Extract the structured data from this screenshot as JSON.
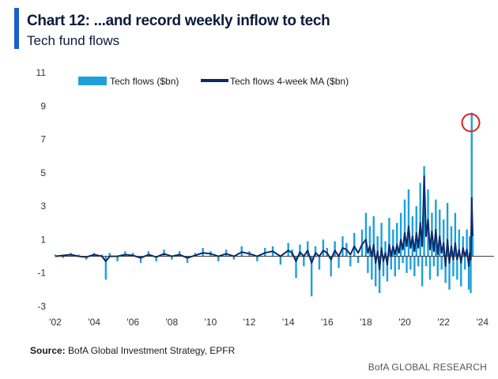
{
  "header": {
    "title": "Chart 12: ...and record weekly inflow to tech",
    "subtitle": "Tech fund flows"
  },
  "footer": {
    "source_label": "Source:",
    "source_text": "BofA Global Investment Strategy, EPFR",
    "brand": "BofA GLOBAL RESEARCH"
  },
  "colors": {
    "accent": "#1a5fd0",
    "weekly": "#1ea0dc",
    "ma": "#0d2a6b",
    "highlight": "#e01f26"
  },
  "chart_data": {
    "type": "line",
    "title": "Tech fund flows",
    "legend_position": "top",
    "grid": false,
    "ylim": [
      -3,
      11
    ],
    "yticks": [
      -3,
      -1,
      1,
      3,
      5,
      7,
      9,
      11
    ],
    "xlim": [
      2002,
      2024.6
    ],
    "xticks": [
      {
        "value": 2002,
        "label": "'02"
      },
      {
        "value": 2004,
        "label": "'04"
      },
      {
        "value": 2006,
        "label": "'06"
      },
      {
        "value": 2008,
        "label": "'08"
      },
      {
        "value": 2010,
        "label": "'10"
      },
      {
        "value": 2012,
        "label": "'12"
      },
      {
        "value": 2014,
        "label": "'14"
      },
      {
        "value": 2016,
        "label": "'16"
      },
      {
        "value": 2018,
        "label": "'18"
      },
      {
        "value": 2020,
        "label": "'20"
      },
      {
        "value": 2022,
        "label": "'22"
      },
      {
        "value": 2024,
        "label": "'24"
      }
    ],
    "series": [
      {
        "name": "Tech flows ($bn)",
        "style": "weekly-bars",
        "x": [
          2002.0,
          2002.4,
          2002.8,
          2003.2,
          2003.6,
          2004.0,
          2004.4,
          2004.6,
          2004.8,
          2005.2,
          2005.6,
          2006.0,
          2006.4,
          2006.8,
          2007.2,
          2007.6,
          2008.0,
          2008.4,
          2008.8,
          2009.2,
          2009.6,
          2010.0,
          2010.4,
          2010.8,
          2011.2,
          2011.6,
          2012.0,
          2012.4,
          2012.8,
          2013.2,
          2013.6,
          2014.0,
          2014.2,
          2014.4,
          2014.6,
          2014.8,
          2015.0,
          2015.2,
          2015.4,
          2015.6,
          2015.8,
          2016.0,
          2016.2,
          2016.4,
          2016.6,
          2016.8,
          2017.0,
          2017.2,
          2017.4,
          2017.6,
          2017.8,
          2018.0,
          2018.1,
          2018.2,
          2018.3,
          2018.4,
          2018.5,
          2018.6,
          2018.7,
          2018.8,
          2018.9,
          2019.0,
          2019.1,
          2019.2,
          2019.3,
          2019.4,
          2019.5,
          2019.6,
          2019.7,
          2019.8,
          2019.9,
          2020.0,
          2020.1,
          2020.2,
          2020.3,
          2020.4,
          2020.5,
          2020.6,
          2020.7,
          2020.8,
          2020.9,
          2021.0,
          2021.1,
          2021.2,
          2021.3,
          2021.4,
          2021.5,
          2021.6,
          2021.7,
          2021.8,
          2021.9,
          2022.0,
          2022.1,
          2022.2,
          2022.3,
          2022.4,
          2022.5,
          2022.6,
          2022.7,
          2022.8,
          2022.9,
          2023.0,
          2023.1,
          2023.2,
          2023.3,
          2023.35,
          2023.4,
          2023.45,
          2023.5
        ],
        "values": [
          0.1,
          -0.1,
          0.2,
          0.1,
          -0.2,
          0.2,
          0.1,
          -1.4,
          0.2,
          -0.3,
          0.3,
          0.2,
          -0.4,
          0.3,
          -0.3,
          0.4,
          -0.2,
          0.3,
          -0.4,
          0.2,
          0.5,
          0.3,
          -0.3,
          0.4,
          -0.2,
          0.6,
          0.3,
          -0.3,
          0.5,
          0.6,
          -0.5,
          0.8,
          0.4,
          -1.3,
          0.7,
          -0.6,
          0.9,
          -2.4,
          0.6,
          -0.8,
          1.0,
          0.5,
          -1.2,
          0.9,
          -0.7,
          1.2,
          0.8,
          -0.6,
          1.4,
          -0.4,
          1.6,
          2.6,
          -1.0,
          1.8,
          -1.4,
          2.4,
          -1.8,
          1.2,
          -2.2,
          2.0,
          -1.2,
          0.9,
          -1.5,
          2.3,
          -0.8,
          1.6,
          -1.2,
          2.0,
          -0.8,
          2.6,
          -0.4,
          3.4,
          -1.0,
          4.0,
          -0.8,
          2.4,
          -1.2,
          3.0,
          -0.6,
          4.4,
          -1.8,
          5.4,
          -0.6,
          4.0,
          -1.4,
          2.6,
          -0.6,
          3.4,
          -1.2,
          2.8,
          -0.8,
          2.2,
          -1.6,
          3.2,
          -2.0,
          1.8,
          -1.2,
          2.6,
          -1.4,
          1.6,
          -1.8,
          1.2,
          -0.8,
          1.6,
          -2.0,
          1.2,
          -2.2,
          8.6,
          1.2
        ]
      },
      {
        "name": "Tech flows 4-week MA ($bn)",
        "style": "line",
        "x": [
          2002.0,
          2002.4,
          2002.8,
          2003.2,
          2003.6,
          2004.0,
          2004.4,
          2004.6,
          2004.8,
          2005.2,
          2005.6,
          2006.0,
          2006.4,
          2006.8,
          2007.2,
          2007.6,
          2008.0,
          2008.4,
          2008.8,
          2009.2,
          2009.6,
          2010.0,
          2010.4,
          2010.8,
          2011.2,
          2011.6,
          2012.0,
          2012.4,
          2012.8,
          2013.2,
          2013.6,
          2014.0,
          2014.2,
          2014.4,
          2014.6,
          2014.8,
          2015.0,
          2015.2,
          2015.4,
          2015.6,
          2015.8,
          2016.0,
          2016.2,
          2016.4,
          2016.6,
          2016.8,
          2017.0,
          2017.2,
          2017.4,
          2017.6,
          2017.8,
          2018.0,
          2018.1,
          2018.2,
          2018.3,
          2018.4,
          2018.5,
          2018.6,
          2018.7,
          2018.8,
          2018.9,
          2019.0,
          2019.1,
          2019.2,
          2019.3,
          2019.4,
          2019.5,
          2019.6,
          2019.7,
          2019.8,
          2019.9,
          2020.0,
          2020.1,
          2020.2,
          2020.3,
          2020.4,
          2020.5,
          2020.6,
          2020.7,
          2020.8,
          2020.9,
          2021.0,
          2021.1,
          2021.2,
          2021.3,
          2021.4,
          2021.5,
          2021.6,
          2021.7,
          2021.8,
          2021.9,
          2022.0,
          2022.1,
          2022.2,
          2022.3,
          2022.4,
          2022.5,
          2022.6,
          2022.7,
          2022.8,
          2022.9,
          2023.0,
          2023.1,
          2023.2,
          2023.3,
          2023.35,
          2023.4,
          2023.45,
          2023.5
        ],
        "values": [
          0.0,
          0.05,
          0.1,
          0.0,
          -0.05,
          0.1,
          0.0,
          -0.3,
          0.0,
          0.0,
          0.1,
          0.05,
          -0.1,
          0.1,
          -0.05,
          0.15,
          0.0,
          0.1,
          -0.1,
          0.05,
          0.2,
          0.15,
          0.0,
          0.15,
          0.0,
          0.25,
          0.15,
          0.0,
          0.2,
          0.3,
          0.0,
          0.35,
          0.2,
          -0.3,
          0.25,
          0.0,
          0.35,
          -0.4,
          0.2,
          0.0,
          0.35,
          0.2,
          -0.2,
          0.35,
          0.0,
          0.5,
          0.4,
          0.1,
          0.6,
          0.2,
          0.7,
          1.0,
          0.2,
          0.6,
          0.0,
          0.7,
          -0.4,
          0.3,
          -0.8,
          0.5,
          -0.3,
          0.2,
          -0.5,
          0.7,
          0.0,
          0.6,
          0.1,
          0.7,
          0.2,
          1.0,
          0.4,
          1.4,
          0.6,
          1.8,
          0.5,
          1.2,
          0.3,
          1.4,
          0.5,
          2.0,
          0.6,
          4.8,
          1.2,
          2.2,
          0.4,
          1.5,
          0.3,
          1.6,
          0.1,
          1.2,
          0.2,
          0.8,
          -0.6,
          1.0,
          -0.4,
          0.6,
          -0.2,
          0.8,
          -0.2,
          0.4,
          -0.4,
          0.5,
          0.0,
          0.4,
          -0.6,
          0.2,
          -0.2,
          3.5,
          1.2
        ]
      }
    ],
    "annotations": [
      {
        "type": "circle",
        "x": 2023.4,
        "y": 8.0
      }
    ]
  }
}
